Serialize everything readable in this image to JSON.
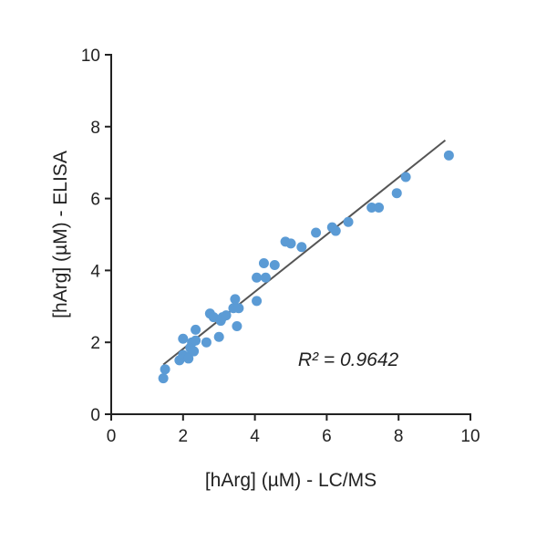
{
  "chart_data": {
    "type": "scatter",
    "title": "",
    "xlabel": "[hArg] (µM) - LC/MS",
    "ylabel": "[hArg] (µM) - ELISA",
    "xlim": [
      0,
      10
    ],
    "ylim": [
      0,
      10
    ],
    "xticks": [
      0,
      2,
      4,
      6,
      8,
      10
    ],
    "yticks": [
      0,
      2,
      4,
      6,
      8,
      10
    ],
    "x_tick_labels": [
      "0",
      "2",
      "4",
      "6",
      "8",
      "10"
    ],
    "y_tick_labels": [
      "0",
      "2",
      "4",
      "6",
      "8",
      "10"
    ],
    "grid": false,
    "legend": "none",
    "point_color": "#5b9bd5",
    "line_color": "#555555",
    "annotation": "R² = 0.9642",
    "series": [
      {
        "points": [
          [
            1.45,
            1.0
          ],
          [
            1.5,
            1.25
          ],
          [
            1.9,
            1.5
          ],
          [
            2.0,
            1.65
          ],
          [
            2.0,
            2.1
          ],
          [
            2.1,
            1.6
          ],
          [
            2.15,
            1.55
          ],
          [
            2.2,
            1.85
          ],
          [
            2.25,
            2.0
          ],
          [
            2.3,
            1.75
          ],
          [
            2.35,
            2.05
          ],
          [
            2.35,
            2.35
          ],
          [
            2.65,
            2.0
          ],
          [
            2.75,
            2.8
          ],
          [
            2.85,
            2.7
          ],
          [
            3.0,
            2.15
          ],
          [
            3.05,
            2.6
          ],
          [
            3.1,
            2.7
          ],
          [
            3.2,
            2.75
          ],
          [
            3.4,
            2.95
          ],
          [
            3.45,
            3.2
          ],
          [
            3.5,
            2.45
          ],
          [
            3.55,
            2.95
          ],
          [
            4.05,
            3.15
          ],
          [
            4.05,
            3.8
          ],
          [
            4.25,
            4.2
          ],
          [
            4.3,
            3.8
          ],
          [
            4.55,
            4.15
          ],
          [
            4.85,
            4.8
          ],
          [
            5.0,
            4.75
          ],
          [
            5.3,
            4.65
          ],
          [
            5.7,
            5.05
          ],
          [
            6.15,
            5.2
          ],
          [
            6.25,
            5.1
          ],
          [
            6.6,
            5.35
          ],
          [
            7.25,
            5.75
          ],
          [
            7.45,
            5.75
          ],
          [
            7.95,
            6.15
          ],
          [
            8.2,
            6.6
          ],
          [
            9.4,
            7.2
          ]
        ]
      }
    ],
    "fit_line": {
      "x": [
        1.45,
        9.3
      ],
      "y": [
        1.38,
        7.62
      ]
    }
  }
}
